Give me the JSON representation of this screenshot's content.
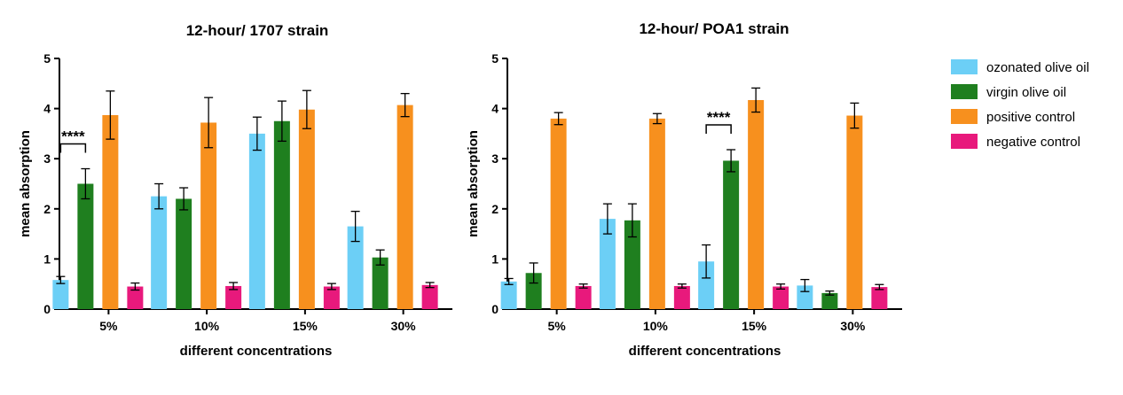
{
  "chart_data": [
    {
      "type": "bar",
      "title": "12-hour/ 1707 strain",
      "xlabel": "different concentrations",
      "ylabel": "mean absorption",
      "ylim": [
        0,
        5
      ],
      "yticks": [
        "0",
        "1",
        "2",
        "3",
        "4",
        "5"
      ],
      "categories": [
        "5%",
        "10%",
        "15%",
        "30%"
      ],
      "series": [
        {
          "name": "ozonated olive oil",
          "values": [
            0.58,
            2.25,
            3.5,
            1.65
          ],
          "errors": [
            0.07,
            0.25,
            0.33,
            0.3
          ]
        },
        {
          "name": "virgin olive oil",
          "values": [
            2.5,
            2.2,
            3.75,
            1.03
          ],
          "errors": [
            0.3,
            0.22,
            0.4,
            0.15
          ]
        },
        {
          "name": "positive control",
          "values": [
            3.87,
            3.72,
            3.98,
            4.07
          ],
          "errors": [
            0.48,
            0.5,
            0.38,
            0.23
          ]
        },
        {
          "name": "negative control",
          "values": [
            0.45,
            0.46,
            0.45,
            0.48
          ],
          "errors": [
            0.07,
            0.07,
            0.06,
            0.05
          ]
        }
      ],
      "annotations": [
        {
          "text": "****",
          "category": "5%",
          "from_series": 0,
          "to_series": 1
        }
      ]
    },
    {
      "type": "bar",
      "title": "12-hour/ POA1 strain",
      "xlabel": "different concentrations",
      "ylabel": "mean absorption",
      "ylim": [
        0,
        5
      ],
      "yticks": [
        "0",
        "1",
        "2",
        "3",
        "4",
        "5"
      ],
      "categories": [
        "5%",
        "10%",
        "15%",
        "30%"
      ],
      "series": [
        {
          "name": "ozonated olive oil",
          "values": [
            0.55,
            1.8,
            0.95,
            0.47
          ],
          "errors": [
            0.06,
            0.3,
            0.33,
            0.12
          ]
        },
        {
          "name": "virgin olive oil",
          "values": [
            0.72,
            1.77,
            2.96,
            0.32
          ],
          "errors": [
            0.2,
            0.33,
            0.22,
            0.04
          ]
        },
        {
          "name": "positive control",
          "values": [
            3.8,
            3.8,
            4.17,
            3.86
          ],
          "errors": [
            0.12,
            0.1,
            0.24,
            0.25
          ]
        },
        {
          "name": "negative control",
          "values": [
            0.46,
            0.46,
            0.45,
            0.44
          ],
          "errors": [
            0.04,
            0.04,
            0.05,
            0.05
          ]
        }
      ],
      "annotations": [
        {
          "text": "****",
          "category": "15%",
          "from_series": 0,
          "to_series": 1
        }
      ]
    }
  ],
  "legend": {
    "placement": "right",
    "items": [
      {
        "label": "ozonated olive oil",
        "color": "#6ccff6"
      },
      {
        "label": "virgin olive oil",
        "color": "#1f7f1f"
      },
      {
        "label": "positive control",
        "color": "#f7901e"
      },
      {
        "label": "negative control",
        "color": "#e8197c"
      }
    ]
  }
}
